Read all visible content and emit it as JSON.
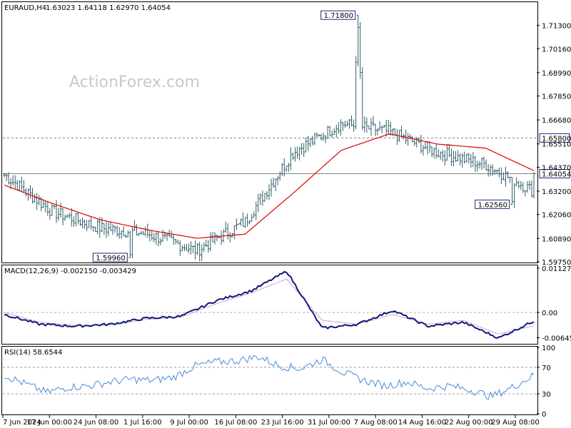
{
  "header": {
    "symbol": "EURAUD,H4",
    "ohlc": "1.63023 1.64118 1.62970 1.64054"
  },
  "watermark": "ActionForex.com",
  "colors": {
    "candle": "#2f5f6a",
    "ma": "#e00000",
    "macd_line": "#0d1a7a",
    "macd_signal": "#c8a6cf",
    "rsi": "#4a8ad6",
    "ref_line": "#808080",
    "label_box": "#1c2a7a"
  },
  "chart_data": [
    {
      "type": "candlestick",
      "title": "EURAUD,H4",
      "ylim": [
        1.5975,
        1.724
      ],
      "y_ticks": [
        "1.71300",
        "1.70160",
        "1.68990",
        "1.67850",
        "1.66680",
        "1.65510",
        "1.64370",
        "1.63200",
        "1.62060",
        "1.60890",
        "1.59750"
      ],
      "x_ticks": [
        "7 Jun 2024",
        "17 Jun 00:00",
        "24 Jun 08:00",
        "1 Jul 16:00",
        "9 Jul 00:00",
        "16 Jul 08:00",
        "23 Jul 16:00",
        "31 Jul 00:00",
        "7 Aug 08:00",
        "14 Aug 16:00",
        "22 Aug 00:00",
        "29 Aug 08:00"
      ],
      "horizontal_levels": [
        {
          "value": 1.658,
          "label": "1.65800",
          "style": "dashed"
        },
        {
          "value": 1.64054,
          "label": "1.64054",
          "style": "solid"
        }
      ],
      "annotations": [
        {
          "label": "1.59960",
          "value": 1.5996
        },
        {
          "label": "1.71800",
          "value": 1.718
        },
        {
          "label": "1.62560",
          "value": 1.6256
        }
      ],
      "series": [
        {
          "name": "",
          "type": "close",
          "x": [
            "7 Jun 2024",
            "17 Jun 00:00",
            "24 Jun 08:00",
            "1 Jul 16:00",
            "9 Jul 00:00",
            "16 Jul 08:00",
            "23 Jul 16:00",
            "31 Jul 00:00",
            "7 Aug 08:00",
            "14 Aug 16:00",
            "22 Aug 00:00",
            "29 Aug 08:00"
          ],
          "values": [
            1.64,
            1.622,
            1.614,
            1.611,
            1.603,
            1.617,
            1.651,
            1.665,
            1.661,
            1.651,
            1.645,
            1.632
          ]
        },
        {
          "name": "",
          "type": "moving-average",
          "values": [
            1.635,
            1.626,
            1.618,
            1.613,
            1.609,
            1.611,
            1.631,
            1.652,
            1.66,
            1.655,
            1.653,
            1.642
          ]
        }
      ]
    },
    {
      "type": "line",
      "title": "MACD(12,26,9) -0.002150 -0.003429",
      "ylim": [
        -0.0078,
        0.0118
      ],
      "y_ticks": [
        "0.011271",
        "0.00",
        "-0.006453"
      ],
      "series": [
        {
          "name": "",
          "values": [
            -0.0005,
            -0.003,
            -0.0035,
            -0.003,
            -0.0015,
            -0.001,
            0.003,
            0.0055,
            0.0105,
            -0.004,
            -0.003,
            0.0005,
            -0.0035,
            -0.0025,
            -0.0065,
            -0.0022
          ]
        },
        {
          "name": "",
          "values": [
            0.0,
            -0.0025,
            -0.0033,
            -0.0032,
            -0.0018,
            -0.0012,
            0.0022,
            0.005,
            0.0085,
            -0.002,
            -0.003,
            -0.0005,
            -0.003,
            -0.002,
            -0.0055,
            -0.0034
          ]
        }
      ]
    },
    {
      "type": "line",
      "title": "RSI(14) 58.6544",
      "ylim": [
        0,
        100
      ],
      "y_ticks": [
        "100",
        "70",
        "30",
        "0"
      ],
      "levels": [
        70,
        30
      ],
      "series": [
        {
          "name": "",
          "values": [
            58,
            45,
            32,
            40,
            42,
            48,
            52,
            50,
            55,
            72,
            78,
            80,
            86,
            72,
            68,
            82,
            62,
            50,
            42,
            48,
            38,
            42,
            36,
            26,
            40,
            58
          ]
        }
      ]
    }
  ]
}
